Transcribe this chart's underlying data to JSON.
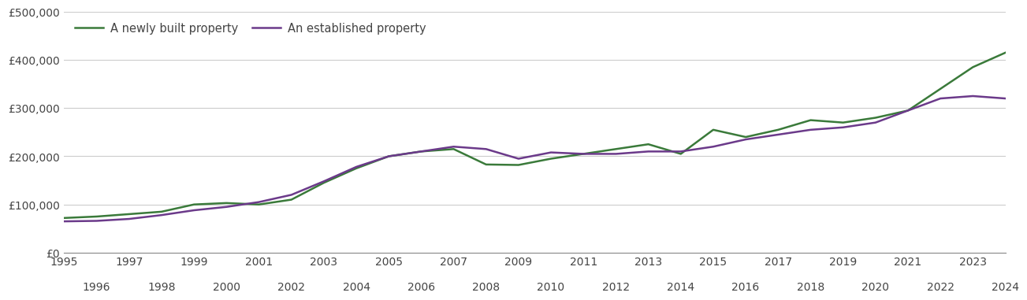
{
  "years": [
    1995,
    1996,
    1997,
    1998,
    1999,
    2000,
    2001,
    2002,
    2003,
    2004,
    2005,
    2006,
    2007,
    2008,
    2009,
    2010,
    2011,
    2012,
    2013,
    2014,
    2015,
    2016,
    2017,
    2018,
    2019,
    2020,
    2021,
    2022,
    2023,
    2024
  ],
  "new_build": [
    72000,
    75000,
    80000,
    85000,
    100000,
    103000,
    100000,
    110000,
    145000,
    175000,
    200000,
    210000,
    215000,
    183000,
    182000,
    195000,
    205000,
    215000,
    225000,
    205000,
    255000,
    240000,
    255000,
    275000,
    270000,
    280000,
    295000,
    340000,
    385000,
    415000
  ],
  "established": [
    65000,
    66000,
    70000,
    78000,
    88000,
    95000,
    105000,
    120000,
    148000,
    178000,
    200000,
    210000,
    220000,
    215000,
    195000,
    208000,
    205000,
    205000,
    210000,
    210000,
    220000,
    235000,
    245000,
    255000,
    260000,
    270000,
    295000,
    320000,
    325000,
    320000
  ],
  "new_build_color": "#3a7a3a",
  "established_color": "#6b3a8a",
  "background_color": "#ffffff",
  "grid_color": "#cccccc",
  "legend_new": "A newly built property",
  "legend_est": "An established property",
  "ylim": [
    0,
    500000
  ],
  "yticks": [
    0,
    100000,
    200000,
    300000,
    400000,
    500000
  ],
  "ytick_labels": [
    "£0",
    "£100,000",
    "£200,000",
    "£300,000",
    "£400,000",
    "£500,000"
  ],
  "line_width": 1.8,
  "tick_fontsize": 10,
  "legend_fontsize": 10.5,
  "text_color": "#444444"
}
